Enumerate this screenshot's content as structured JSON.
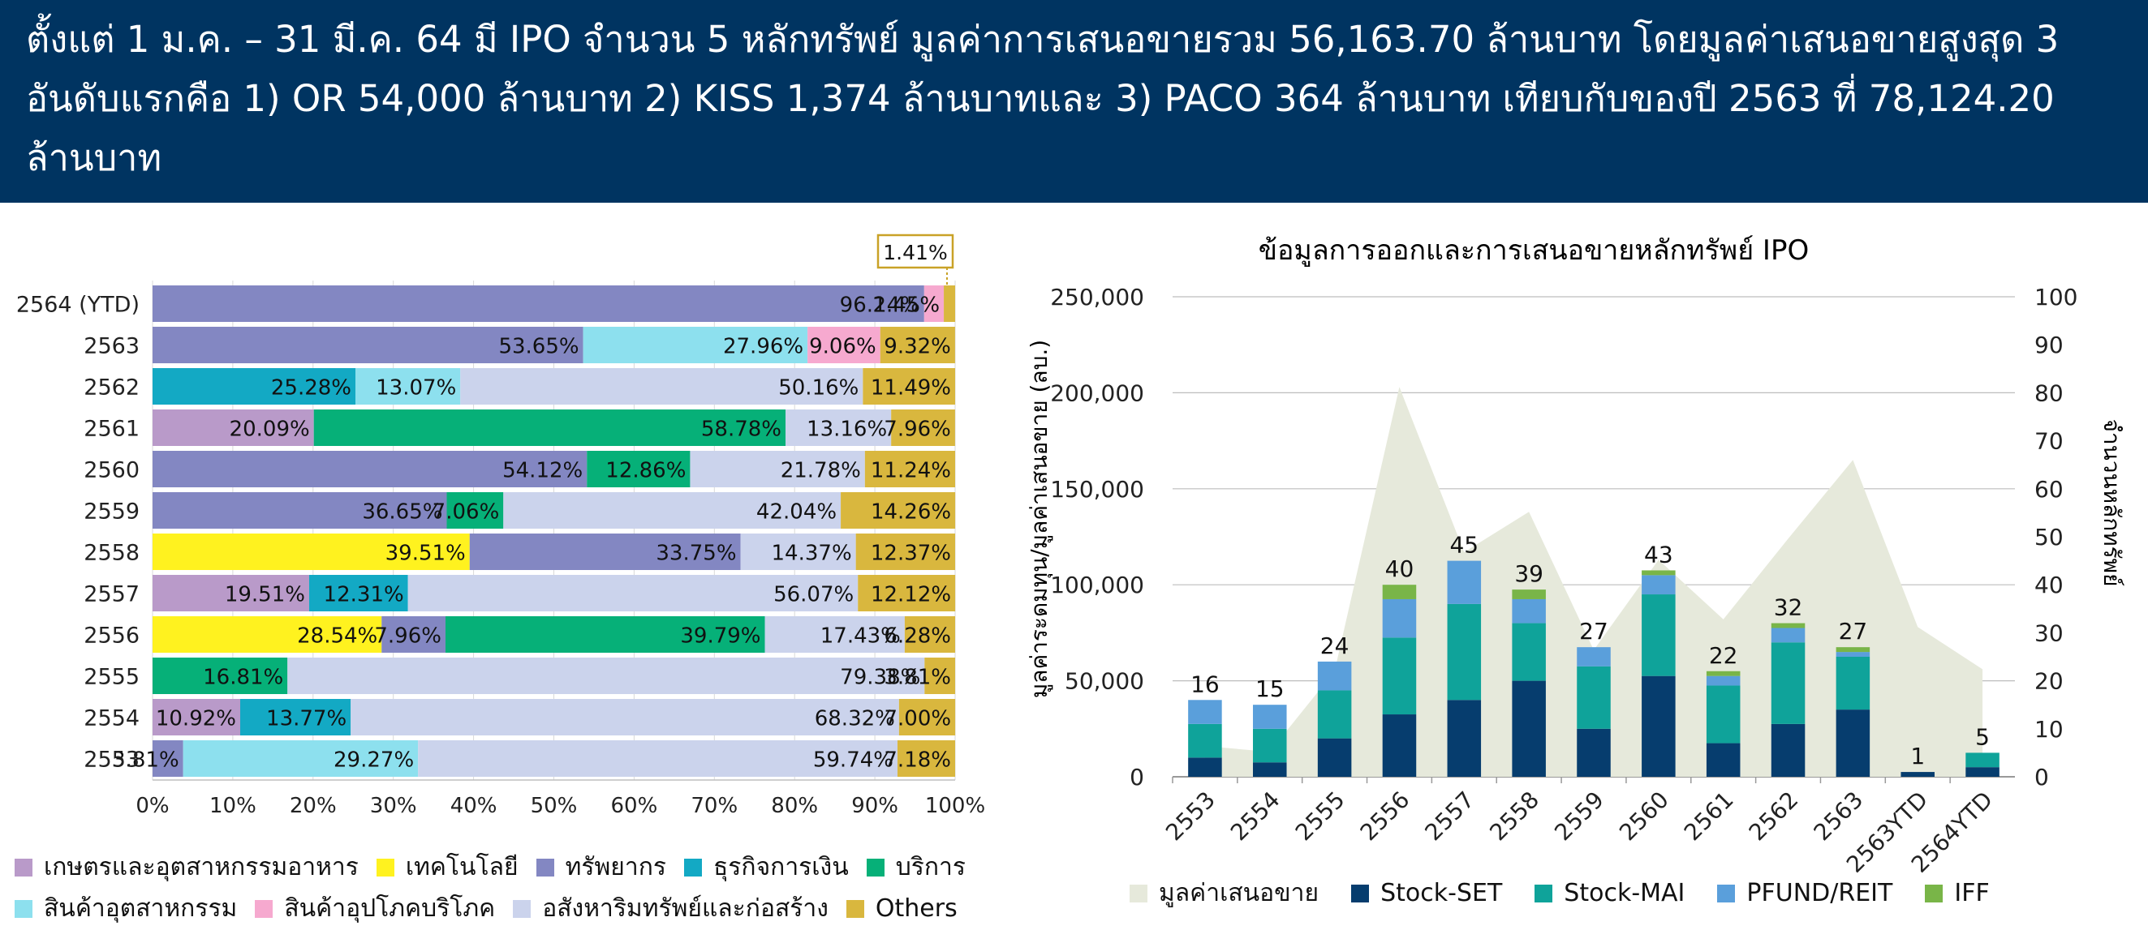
{
  "header": {
    "text": "ตั้งแต่ 1 ม.ค. – 31 มี.ค. 64 มี IPO จำนวน 5 หลักทรัพย์ มูลค่าการเสนอขายรวม 56,163.70 ล้านบาท โดยมูลค่าเสนอขายสูงสุด 3 อันดับแรกคือ 1) OR 54,000 ล้านบาท 2) KISS 1,374 ล้านบาทและ 3) PACO 364 ล้านบาท เทียบกับของปี 2563 ที่ 78,124.20 ล้านบาท"
  },
  "colors": {
    "header_bg": "#003461",
    "agro_food": "#b99ac9",
    "technology": "#fff21f",
    "resources": "#8387c2",
    "financials": "#13a9c4",
    "services": "#06b078",
    "industrials": "#8de0ee",
    "consumer_products": "#f6a9cf",
    "property_construction": "#cbd3ec",
    "others": "#d9b73e",
    "offering_value_area": "#e6e9db",
    "stock_set": "#063d6e",
    "stock_mai": "#0fa39a",
    "pfund_reit": "#5a9fdb",
    "iff": "#79b548"
  },
  "chart_data": [
    {
      "type": "bar",
      "orientation": "horizontal",
      "stacked": true,
      "categories": [
        "2564 (YTD)",
        "2563",
        "2562",
        "2561",
        "2560",
        "2559",
        "2558",
        "2557",
        "2556",
        "2555",
        "2554",
        "2553"
      ],
      "series": [
        {
          "name": "เกษตรและอุตสาหกรรมอาหาร",
          "key": "agro_food",
          "values": [
            0,
            0,
            0,
            20.09,
            0,
            0,
            0,
            19.51,
            0,
            0,
            10.92,
            0
          ]
        },
        {
          "name": "เทคโนโลยี",
          "key": "technology",
          "values": [
            0,
            0,
            0,
            0,
            0,
            0,
            39.51,
            0,
            28.54,
            0,
            0,
            0
          ]
        },
        {
          "name": "ทรัพยากร",
          "key": "resources",
          "values": [
            96.14,
            53.65,
            0,
            0,
            54.12,
            36.65,
            33.75,
            0,
            7.96,
            0,
            0,
            3.81
          ]
        },
        {
          "name": "ธุรกิจการเงิน",
          "key": "financials",
          "values": [
            0,
            0,
            25.28,
            0,
            0,
            0,
            0,
            12.31,
            0,
            0,
            13.77,
            0
          ]
        },
        {
          "name": "บริการ",
          "key": "services",
          "values": [
            0,
            0,
            0,
            58.78,
            12.86,
            7.06,
            0,
            0,
            39.79,
            16.81,
            0,
            0
          ]
        },
        {
          "name": "สินค้าอุตสาหกรรม",
          "key": "industrials",
          "values": [
            0,
            27.96,
            13.07,
            0,
            0,
            0,
            0,
            0,
            0,
            0,
            0,
            29.27
          ]
        },
        {
          "name": "สินค้าอุปโภคบริโภค",
          "key": "consumer_products",
          "values": [
            2.45,
            9.06,
            0,
            0,
            0,
            0,
            0,
            0,
            0,
            0,
            0,
            0
          ]
        },
        {
          "name": "อสังหาริมทรัพย์และก่อสร้าง",
          "key": "property_construction",
          "values": [
            0,
            0,
            50.16,
            13.16,
            21.78,
            42.04,
            14.37,
            56.07,
            17.43,
            79.38,
            68.32,
            59.74
          ]
        },
        {
          "name": "Others",
          "key": "others",
          "values": [
            1.41,
            9.32,
            11.49,
            7.96,
            11.24,
            14.26,
            12.37,
            12.12,
            6.28,
            3.81,
            7.0,
            7.18
          ]
        }
      ],
      "data_labels": [
        [
          "",
          "",
          "96.14%",
          "",
          "",
          "",
          "2.45%",
          "",
          "1.41%"
        ],
        [
          "",
          "",
          "53.65%",
          "",
          "",
          "27.96%",
          "9.06%",
          "",
          "9.32%"
        ],
        [
          "",
          "",
          "",
          "25.28%",
          "",
          "13.07%",
          "",
          "50.16%",
          "11.49%"
        ],
        [
          "20.09%",
          "",
          "",
          "",
          "58.78%",
          "",
          "",
          "13.16%",
          "7.96%"
        ],
        [
          "",
          "",
          "54.12%",
          "",
          "12.86%",
          "",
          "",
          "21.78%",
          "11.24%"
        ],
        [
          "",
          "",
          "36.65%",
          "",
          "7.06%",
          "",
          "",
          "42.04%",
          "14.26%"
        ],
        [
          "",
          "39.51%",
          "33.75%",
          "",
          "",
          "",
          "",
          "14.37%",
          "12.37%"
        ],
        [
          "19.51%",
          "",
          "",
          "12.31%",
          "",
          "",
          "",
          "56.07%",
          "12.12%"
        ],
        [
          "",
          "28.54%",
          "7.96%",
          "",
          "39.79%",
          "",
          "",
          "17.43%",
          "6.28%"
        ],
        [
          "",
          "",
          "",
          "",
          "16.81%",
          "",
          "",
          "79.38%",
          "3.81%"
        ],
        [
          "10.92%",
          "",
          "",
          "13.77%",
          "",
          "",
          "",
          "68.32%",
          "7.00%"
        ],
        [
          "",
          "",
          "3.81%",
          "",
          "",
          "29.27%",
          "",
          "59.74%",
          "7.18%"
        ]
      ],
      "callout": "1.41%",
      "xlim": [
        0,
        100
      ],
      "x_ticks": [
        "0%",
        "10%",
        "20%",
        "30%",
        "40%",
        "50%",
        "60%",
        "70%",
        "80%",
        "90%",
        "100%"
      ],
      "legend_position": "bottom"
    },
    {
      "type": "bar",
      "stacked": true,
      "title": "ข้อมูลการออกและการเสนอขายหลักทรัพย์ IPO",
      "ylabel": "มูลค่าระดมทุน/มูลค่าเสนอขาย (ลบ.)",
      "y2label": "จำนวนหลักทรัพย์",
      "categories": [
        "2553",
        "2554",
        "2555",
        "2556",
        "2557",
        "2558",
        "2559",
        "2560",
        "2561",
        "2562",
        "2563",
        "2563YTD",
        "2564YTD"
      ],
      "ylim": [
        0,
        250000
      ],
      "y_ticks": [
        "0",
        "50,000",
        "100,000",
        "150,000",
        "200,000",
        "250,000"
      ],
      "y2lim": [
        0,
        100
      ],
      "y2_ticks": [
        "0",
        "10",
        "20",
        "30",
        "40",
        "50",
        "60",
        "70",
        "80",
        "90",
        "100"
      ],
      "area": {
        "name": "มูลค่าเสนอขาย",
        "key": "offering_value_area",
        "values": [
          16000,
          13000,
          55000,
          203000,
          117000,
          138000,
          66000,
          113000,
          82000,
          124000,
          165000,
          78000,
          56000
        ]
      },
      "series": [
        {
          "name": "Stock-SET",
          "key": "stock_set",
          "values": [
            4,
            3,
            8,
            13,
            16,
            20,
            10,
            21,
            7,
            11,
            14,
            1,
            2
          ]
        },
        {
          "name": "Stock-MAI",
          "key": "stock_mai",
          "values": [
            7,
            7,
            10,
            16,
            20,
            12,
            13,
            17,
            12,
            17,
            11,
            0,
            3
          ]
        },
        {
          "name": "PFUND/REIT",
          "key": "pfund_reit",
          "values": [
            5,
            5,
            6,
            8,
            9,
            5,
            4,
            4,
            2,
            3,
            1,
            0,
            0
          ]
        },
        {
          "name": "IFF",
          "key": "iff",
          "values": [
            0,
            0,
            0,
            3,
            0,
            2,
            0,
            1,
            1,
            1,
            1,
            0,
            0
          ]
        }
      ],
      "totals": [
        "16",
        "15",
        "24",
        "40",
        "45",
        "39",
        "27",
        "43",
        "22",
        "32",
        "27",
        "1",
        "5"
      ],
      "legend_position": "bottom"
    }
  ]
}
